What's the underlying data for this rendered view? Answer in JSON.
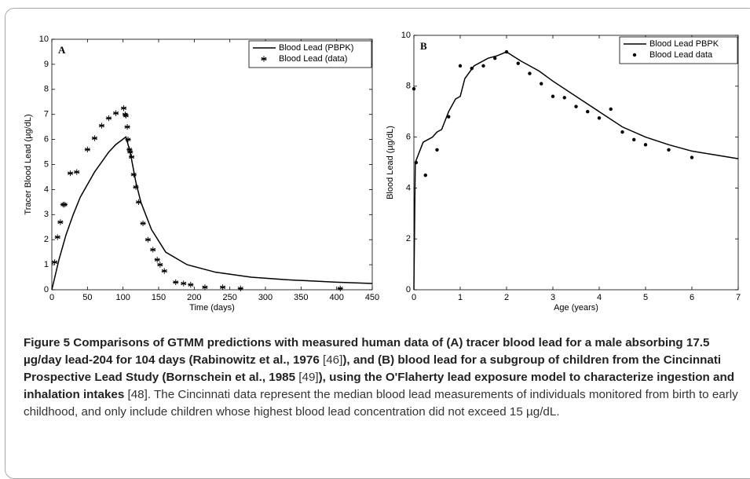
{
  "chart_data": [
    {
      "type": "line",
      "panel_label": "A",
      "xlabel": "Time (days)",
      "ylabel": "Tracer Blood Lead (µg/dL)",
      "xlim": [
        0,
        450
      ],
      "xticks": [
        0,
        50,
        100,
        150,
        200,
        250,
        300,
        350,
        400,
        450
      ],
      "ylim": [
        0,
        10
      ],
      "yticks": [
        0,
        1,
        2,
        3,
        4,
        5,
        6,
        7,
        8,
        9,
        10
      ],
      "legend": "upper right",
      "series": [
        {
          "name": "Blood Lead (PBPK)",
          "style": "line",
          "color": "#000000",
          "x": [
            0,
            10,
            20,
            30,
            40,
            50,
            60,
            70,
            80,
            90,
            104,
            110,
            118,
            125,
            140,
            160,
            190,
            230,
            280,
            330,
            400,
            450
          ],
          "values": [
            0,
            1.2,
            2.2,
            3.0,
            3.7,
            4.2,
            4.7,
            5.1,
            5.5,
            5.8,
            6.1,
            5.5,
            4.3,
            3.5,
            2.4,
            1.5,
            1.0,
            0.7,
            0.5,
            0.4,
            0.3,
            0.25
          ]
        },
        {
          "name": "Blood Lead (data)",
          "style": "marker",
          "marker": "asterisk",
          "color": "#000000",
          "x": [
            4,
            8,
            12,
            16,
            18,
            26,
            35,
            50,
            60,
            70,
            80,
            90,
            101,
            103,
            104,
            106,
            107,
            109,
            110,
            112,
            115,
            118,
            122,
            128,
            135,
            142,
            148,
            152,
            158,
            174,
            185,
            195,
            215,
            240,
            265,
            405
          ],
          "values": [
            1.1,
            2.1,
            2.7,
            3.4,
            3.4,
            4.65,
            4.7,
            5.6,
            6.05,
            6.55,
            6.85,
            7.05,
            7.25,
            7.0,
            6.95,
            6.5,
            6.0,
            5.6,
            5.5,
            5.3,
            4.6,
            4.1,
            3.5,
            2.65,
            2.0,
            1.6,
            1.2,
            1.0,
            0.75,
            0.3,
            0.25,
            0.2,
            0.1,
            0.1,
            0.05,
            0.05
          ]
        }
      ]
    },
    {
      "type": "line",
      "panel_label": "B",
      "xlabel": "Age (years)",
      "ylabel": "Blood Lead (µg/dL)",
      "xlim": [
        0,
        7
      ],
      "xticks": [
        0,
        1,
        2,
        3,
        4,
        5,
        6,
        7
      ],
      "ylim": [
        0,
        10
      ],
      "yticks": [
        0,
        2,
        4,
        6,
        8,
        10
      ],
      "legend": "upper right",
      "series": [
        {
          "name": "Blood Lead PBPK",
          "style": "line",
          "color": "#000000",
          "x": [
            0,
            0.03,
            0.2,
            0.4,
            0.5,
            0.6,
            0.75,
            0.9,
            1.0,
            1.1,
            1.3,
            1.6,
            1.8,
            2.0,
            2.3,
            2.7,
            3.0,
            3.5,
            4.0,
            4.5,
            5.0,
            5.5,
            6.0,
            6.5,
            7.0
          ],
          "values": [
            0,
            5.0,
            5.8,
            6.0,
            6.2,
            6.3,
            7.0,
            7.5,
            7.6,
            8.3,
            8.8,
            9.1,
            9.2,
            9.35,
            9.0,
            8.6,
            8.2,
            7.6,
            7.0,
            6.4,
            6.0,
            5.7,
            5.45,
            5.3,
            5.15
          ]
        },
        {
          "name": "Blood Lead data",
          "style": "marker",
          "marker": "dot",
          "color": "#000000",
          "x": [
            0,
            0.05,
            0.25,
            0.5,
            0.75,
            1.0,
            1.25,
            1.5,
            1.75,
            2.0,
            2.25,
            2.5,
            2.75,
            3.0,
            3.25,
            3.5,
            3.75,
            4.0,
            4.25,
            4.5,
            4.75,
            5.0,
            5.5,
            6.0
          ],
          "values": [
            7.9,
            5.0,
            4.5,
            5.5,
            6.8,
            8.8,
            8.7,
            8.8,
            9.1,
            9.35,
            8.9,
            8.5,
            8.1,
            7.6,
            7.55,
            7.2,
            7.0,
            6.75,
            7.1,
            6.2,
            5.9,
            5.7,
            5.5,
            5.2
          ]
        }
      ]
    }
  ],
  "caption": [
    {
      "text": "Figure 5",
      "bold": true
    },
    {
      "text": " Comparisons of GTMM predictions with measured human data of (A) tracer blood lead for a male absorbing 17.5 µg/day lead-204 for 104 days (Rabinowitz et al., 1976 ",
      "bold": true
    },
    {
      "text": "[46]",
      "bold": false
    },
    {
      "text": "), and (B) blood lead for a subgroup of children from the Cincinnati Prospective Lead Study (Bornschein et al., 1985 ",
      "bold": true
    },
    {
      "text": "[49]",
      "bold": false
    },
    {
      "text": "), using the O'Flaherty lead exposure model to characterize ingestion and inhalation intakes",
      "bold": true
    },
    {
      "text": " [48]. The Cincinnati data represent the median blood lead measurements of individuals monitored from birth to early childhood, and only include children whose highest blood lead concentration did not exceed 15 µg/dL.",
      "bold": false
    }
  ]
}
